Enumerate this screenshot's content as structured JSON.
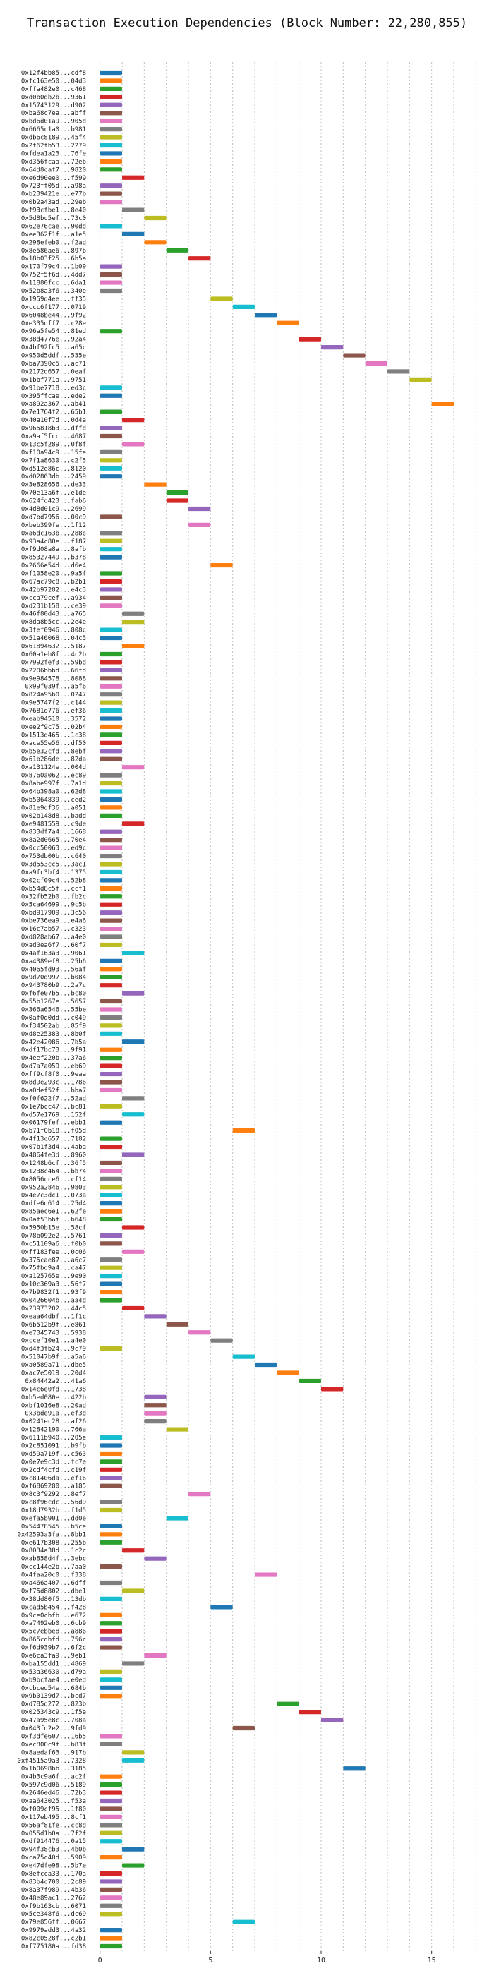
{
  "chart_data": {
    "type": "bar",
    "title": "Transaction Execution Dependencies (Block Number: 22,280,855)",
    "xlabel": "",
    "ylabel": "",
    "xlim": [
      -0.5,
      17.5
    ],
    "xticks": [
      0,
      5,
      10,
      15
    ],
    "grid": "vertical dotted",
    "bar_span": 1,
    "palette": [
      "#1f77b4",
      "#ff7f0e",
      "#2ca02c",
      "#d62728",
      "#9467bd",
      "#8c564b",
      "#e377c2",
      "#7f7f7f",
      "#bcbd22",
      "#17becf"
    ],
    "transactions": [
      {
        "tx": "0x12f4bb85...cdf8",
        "start": 0
      },
      {
        "tx": "0xfc163e50...04d3",
        "start": 0
      },
      {
        "tx": "0xffa482e0...c468",
        "start": 0
      },
      {
        "tx": "0xd0b0db2b...9361",
        "start": 0
      },
      {
        "tx": "0x15743129...d902",
        "start": 0
      },
      {
        "tx": "0xba68c7ea...abff",
        "start": 0
      },
      {
        "tx": "0xbd6d01a9...905d",
        "start": 0
      },
      {
        "tx": "0x6665c1a0...b981",
        "start": 0
      },
      {
        "tx": "0xdb6c8189...45f4",
        "start": 0
      },
      {
        "tx": "0x2f62fb53...2279",
        "start": 0
      },
      {
        "tx": "0xfdea1a23...76fe",
        "start": 0
      },
      {
        "tx": "0xd356fcaa...72eb",
        "start": 0
      },
      {
        "tx": "0x64d8caf7...9820",
        "start": 0
      },
      {
        "tx": "0xe6d90ee0...f599",
        "start": 1
      },
      {
        "tx": "0x723ff05d...a98a",
        "start": 0
      },
      {
        "tx": "0xb239421e...e77b",
        "start": 0
      },
      {
        "tx": "0x0b2a43ad...29eb",
        "start": 0
      },
      {
        "tx": "0xf93cfbe1...8e40",
        "start": 1
      },
      {
        "tx": "0x5d8bc5ef...73c0",
        "start": 2
      },
      {
        "tx": "0x62e76cae...90dd",
        "start": 0
      },
      {
        "tx": "0xee362f1f...a1e5",
        "start": 1
      },
      {
        "tx": "0x298efeb0...f2ad",
        "start": 2
      },
      {
        "tx": "0x8e586ae6...897b",
        "start": 3
      },
      {
        "tx": "0x18b03f25...6b5a",
        "start": 4
      },
      {
        "tx": "0x170f79c4...1b09",
        "start": 0
      },
      {
        "tx": "0x752f5f6d...4dd7",
        "start": 0
      },
      {
        "tx": "0x11880fcc...6da1",
        "start": 0
      },
      {
        "tx": "0x52b8a3f6...340e",
        "start": 0
      },
      {
        "tx": "0x1959d4ee...ff35",
        "start": 5
      },
      {
        "tx": "0xccc6f177...0719",
        "start": 6
      },
      {
        "tx": "0x6048be44...9f92",
        "start": 7
      },
      {
        "tx": "0xe335dff7...c28e",
        "start": 8
      },
      {
        "tx": "0x96a5fe54...81ed",
        "start": 0
      },
      {
        "tx": "0x38d4776e...92a4",
        "start": 9
      },
      {
        "tx": "0x4bf92fc5...a65c",
        "start": 10
      },
      {
        "tx": "0x950d5ddf...535e",
        "start": 11
      },
      {
        "tx": "0xba7390c5...ac71",
        "start": 12
      },
      {
        "tx": "0x2172d657...0eaf",
        "start": 13
      },
      {
        "tx": "0x1bbf771a...9751",
        "start": 14
      },
      {
        "tx": "0x91be7718...ed3c",
        "start": 0
      },
      {
        "tx": "0x395ffcae...ede2",
        "start": 0
      },
      {
        "tx": "0xa892a367...ab41",
        "start": 15
      },
      {
        "tx": "0x7e1764f2...65b1",
        "start": 0
      },
      {
        "tx": "0x40a10f7d...0d4a",
        "start": 1
      },
      {
        "tx": "0x965818b3...dffd",
        "start": 0
      },
      {
        "tx": "0xa9af5fcc...4687",
        "start": 0
      },
      {
        "tx": "0x13c5f289...0f8f",
        "start": 1
      },
      {
        "tx": "0xf10a94c9...15fe",
        "start": 0
      },
      {
        "tx": "0x7f1a8630...c2f5",
        "start": 0
      },
      {
        "tx": "0xd512e86c...8120",
        "start": 0
      },
      {
        "tx": "0xd02863db...2459",
        "start": 0
      },
      {
        "tx": "0x3e828656...de33",
        "start": 2
      },
      {
        "tx": "0x70e13a6f...e1de",
        "start": 3
      },
      {
        "tx": "0x624fd423...fab6",
        "start": 3
      },
      {
        "tx": "0x4d8d01c9...2699",
        "start": 4
      },
      {
        "tx": "0xd7bd7956...00c9",
        "start": 0
      },
      {
        "tx": "0xbeb399fe...1f12",
        "start": 4
      },
      {
        "tx": "0xa6dc163b...288e",
        "start": 0
      },
      {
        "tx": "0x93a4c80e...f187",
        "start": 0
      },
      {
        "tx": "0xf9d08a8a...8afb",
        "start": 0
      },
      {
        "tx": "0x85327449...b378",
        "start": 0
      },
      {
        "tx": "0x2666e54d...d6e4",
        "start": 5
      },
      {
        "tx": "0xf1058e20...9a5f",
        "start": 0
      },
      {
        "tx": "0x67ac79c8...b2b1",
        "start": 0
      },
      {
        "tx": "0x42b97282...e4c3",
        "start": 0
      },
      {
        "tx": "0xcca79cef...a934",
        "start": 0
      },
      {
        "tx": "0xd231b158...ce39",
        "start": 0
      },
      {
        "tx": "0x46f80d43...a765",
        "start": 1
      },
      {
        "tx": "0x8da8b5cc...2e4e",
        "start": 1
      },
      {
        "tx": "0x3fef0946...808c",
        "start": 0
      },
      {
        "tx": "0x51a46068...04c5",
        "start": 0
      },
      {
        "tx": "0x61894632...5187",
        "start": 1
      },
      {
        "tx": "0x60a1eb8f...4c2b",
        "start": 0
      },
      {
        "tx": "0x7992fef3...59bd",
        "start": 0
      },
      {
        "tx": "0x2206bbbd...66fd",
        "start": 0
      },
      {
        "tx": "0x9e984578...8088",
        "start": 0
      },
      {
        "tx": "0x99f039f...a5f6",
        "start": 0
      },
      {
        "tx": "0x824a95b0...0247",
        "start": 0
      },
      {
        "tx": "0x9e5747f2...c144",
        "start": 0
      },
      {
        "tx": "0x7681d776...ef36",
        "start": 0
      },
      {
        "tx": "0xeab94510...3572",
        "start": 0
      },
      {
        "tx": "0xee2f9c75...02b4",
        "start": 0
      },
      {
        "tx": "0x1513d465...1c38",
        "start": 0
      },
      {
        "tx": "0xace55e56...df50",
        "start": 0
      },
      {
        "tx": "0xb5e32cfd...8ebf",
        "start": 0
      },
      {
        "tx": "0x61b286de...82da",
        "start": 0
      },
      {
        "tx": "0xa131124e...004d",
        "start": 1
      },
      {
        "tx": "0x8760a062...ec89",
        "start": 0
      },
      {
        "tx": "0x8abe997f...7a1d",
        "start": 0
      },
      {
        "tx": "0x64b398a0...62d8",
        "start": 0
      },
      {
        "tx": "0xb5064839...ced2",
        "start": 0
      },
      {
        "tx": "0x81e9df36...a051",
        "start": 0
      },
      {
        "tx": "0x02b148d8...badd",
        "start": 0
      },
      {
        "tx": "0xe9481559...c9de",
        "start": 1
      },
      {
        "tx": "0x833df7a4...1668",
        "start": 0
      },
      {
        "tx": "0x8a2d0665...70e4",
        "start": 0
      },
      {
        "tx": "0x0cc50063...ed9c",
        "start": 0
      },
      {
        "tx": "0x753db00b...c640",
        "start": 0
      },
      {
        "tx": "0x3d553cc5...3ac1",
        "start": 0
      },
      {
        "tx": "0xa9fc3bf4...1375",
        "start": 0
      },
      {
        "tx": "0x02cf09c4...52b8",
        "start": 0
      },
      {
        "tx": "0xb54d8c5f...ccf1",
        "start": 0
      },
      {
        "tx": "0x32fb52b0...fb2c",
        "start": 0
      },
      {
        "tx": "0x5ca64699...9c5b",
        "start": 0
      },
      {
        "tx": "0xbd917909...3c56",
        "start": 0
      },
      {
        "tx": "0xbe736ea9...e4a6",
        "start": 0
      },
      {
        "tx": "0x16c7ab57...c323",
        "start": 0
      },
      {
        "tx": "0xd828ab67...a4e0",
        "start": 0
      },
      {
        "tx": "0xad0ea6f7...60f7",
        "start": 0
      },
      {
        "tx": "0x4af163a3...9061",
        "start": 1
      },
      {
        "tx": "0xa4389ef8...25b6",
        "start": 0
      },
      {
        "tx": "0x4065fd93...56af",
        "start": 0
      },
      {
        "tx": "0x9d70d997...b084",
        "start": 0
      },
      {
        "tx": "0x943780b9...2a7c",
        "start": 0
      },
      {
        "tx": "0xf6fe07b5...bc80",
        "start": 1
      },
      {
        "tx": "0x55b1267e...5657",
        "start": 0
      },
      {
        "tx": "0x366a6546...55be",
        "start": 0
      },
      {
        "tx": "0x0af0d0dd...c049",
        "start": 0
      },
      {
        "tx": "0xf34502ab...85f9",
        "start": 0
      },
      {
        "tx": "0xd8e25383...8b0f",
        "start": 0
      },
      {
        "tx": "0x42e42086...7b5a",
        "start": 1
      },
      {
        "tx": "0xdf17bc73...9f91",
        "start": 0
      },
      {
        "tx": "0x4eef220b...37a6",
        "start": 0
      },
      {
        "tx": "0xd7a7a059...eb69",
        "start": 0
      },
      {
        "tx": "0xff9cf8f0...9eaa",
        "start": 0
      },
      {
        "tx": "0x8d9e293c...1786",
        "start": 0
      },
      {
        "tx": "0xa0def52f...bba7",
        "start": 0
      },
      {
        "tx": "0xf0f622f7...52ad",
        "start": 1
      },
      {
        "tx": "0x1e7bcc47...bc81",
        "start": 0
      },
      {
        "tx": "0xd57e1769...152f",
        "start": 1
      },
      {
        "tx": "0x06179fef...ebb1",
        "start": 0
      },
      {
        "tx": "0xb71f0b18...f05d",
        "start": 6
      },
      {
        "tx": "0x4f13c657...7182",
        "start": 0
      },
      {
        "tx": "0x07b1f3d4...4aba",
        "start": 0
      },
      {
        "tx": "0x4864fe3d...8960",
        "start": 1
      },
      {
        "tx": "0x1248b6cf...36f5",
        "start": 0
      },
      {
        "tx": "0x1238c464...bb74",
        "start": 0
      },
      {
        "tx": "0x8056cce6...cf14",
        "start": 0
      },
      {
        "tx": "0x952a2846...9803",
        "start": 0
      },
      {
        "tx": "0x4e7c3dc1...073a",
        "start": 0
      },
      {
        "tx": "0xdfe6d614...25d4",
        "start": 0
      },
      {
        "tx": "0x85aec6e1...62fe",
        "start": 0
      },
      {
        "tx": "0x0af53bbf...b648",
        "start": 0
      },
      {
        "tx": "0x5950b15e...58cf",
        "start": 1
      },
      {
        "tx": "0x78b092e2...5761",
        "start": 0
      },
      {
        "tx": "0xc51109a6...f0b0",
        "start": 0
      },
      {
        "tx": "0xff183fee...0c06",
        "start": 1
      },
      {
        "tx": "0x375cae87...a6c7",
        "start": 0
      },
      {
        "tx": "0x75fbd9a4...ca47",
        "start": 0
      },
      {
        "tx": "0xa125765e...9e90",
        "start": 0
      },
      {
        "tx": "0x10c369a3...56f7",
        "start": 0
      },
      {
        "tx": "0x7b9832f1...93f9",
        "start": 0
      },
      {
        "tx": "0x0426604b...aa4d",
        "start": 0
      },
      {
        "tx": "0x23973202...44c5",
        "start": 1
      },
      {
        "tx": "0xeaa64dbf...1f1c",
        "start": 2
      },
      {
        "tx": "0x6b512b9f...e861",
        "start": 3
      },
      {
        "tx": "0xe7345743...5938",
        "start": 4
      },
      {
        "tx": "0xccef10e1...a4e0",
        "start": 5
      },
      {
        "tx": "0xd4f3fb24...9c79",
        "start": 0
      },
      {
        "tx": "0x51047b9f...a5a6",
        "start": 6
      },
      {
        "tx": "0xa0589a71...dbe5",
        "start": 7
      },
      {
        "tx": "0xac7e5019...20d4",
        "start": 8
      },
      {
        "tx": "0x84442a2...41a6",
        "start": 9
      },
      {
        "tx": "0x14c6e0fd...1738",
        "start": 10
      },
      {
        "tx": "0xb5ed080e...422b",
        "start": 2
      },
      {
        "tx": "0xbf1016e8...20ad",
        "start": 2
      },
      {
        "tx": "0x3bde91a...ef3d",
        "start": 2
      },
      {
        "tx": "0x0241ec28...af26",
        "start": 2
      },
      {
        "tx": "0x12842190...766a",
        "start": 3
      },
      {
        "tx": "0x6111b940...205e",
        "start": 0
      },
      {
        "tx": "0x2c851091...b9fb",
        "start": 0
      },
      {
        "tx": "0xd59a719f...c563",
        "start": 0
      },
      {
        "tx": "0x0e7e9c3d...fc7e",
        "start": 0
      },
      {
        "tx": "0x2cdf4cfd...c19f",
        "start": 0
      },
      {
        "tx": "0xc81406da...ef16",
        "start": 0
      },
      {
        "tx": "0xf6869280...a185",
        "start": 0
      },
      {
        "tx": "0x8c3f9292...8ef7",
        "start": 4
      },
      {
        "tx": "0xc8f96cdc...56d9",
        "start": 0
      },
      {
        "tx": "0x18d7932b...f1d5",
        "start": 0
      },
      {
        "tx": "0xefa5b901...dd0e",
        "start": 3
      },
      {
        "tx": "0x54478545...b5ce",
        "start": 0
      },
      {
        "tx": "0x42593a3fa...8bb1",
        "start": 0
      },
      {
        "tx": "0xe617b308...255b",
        "start": 0
      },
      {
        "tx": "0x8034a38d...1c2c",
        "start": 1
      },
      {
        "tx": "0xab858d4f...3ebc",
        "start": 2
      },
      {
        "tx": "0xcc144e2b...7aa0",
        "start": 0
      },
      {
        "tx": "0x4faa20c0...f338",
        "start": 7
      },
      {
        "tx": "0xa466a407...6dff",
        "start": 0
      },
      {
        "tx": "0xf75d8802...dbe1",
        "start": 1
      },
      {
        "tx": "0x38dd80f5...13db",
        "start": 0
      },
      {
        "tx": "0xcad5b454...f428",
        "start": 5
      },
      {
        "tx": "0x9ce0cbfb...e672",
        "start": 0
      },
      {
        "tx": "0xa7492eb0...6cb9",
        "start": 0
      },
      {
        "tx": "0x5c7ebbe8...a886",
        "start": 0
      },
      {
        "tx": "0x865cdbfd...756c",
        "start": 0
      },
      {
        "tx": "0xf6d939b7...6f2c",
        "start": 0
      },
      {
        "tx": "0xe6ca3fa9...9eb1",
        "start": 2
      },
      {
        "tx": "0xba155dd1...4869",
        "start": 1
      },
      {
        "tx": "0x53a36630...d79a",
        "start": 0
      },
      {
        "tx": "0xb9bcfae4...e0ed",
        "start": 0
      },
      {
        "tx": "0xcbced54e...684b",
        "start": 0
      },
      {
        "tx": "0x9b0139d7...bcd7",
        "start": 0
      },
      {
        "tx": "0xd785d272...823b",
        "start": 8
      },
      {
        "tx": "0x025343c9...1f5e",
        "start": 9
      },
      {
        "tx": "0x47a95e8c...708a",
        "start": 10
      },
      {
        "tx": "0x043fd2e2...9fd9",
        "start": 6
      },
      {
        "tx": "0xf3dfe607...16b5",
        "start": 0
      },
      {
        "tx": "0xec800c9f...b83f",
        "start": 0
      },
      {
        "tx": "0x8aedaf63...917b",
        "start": 1
      },
      {
        "tx": "0xf4515a9a3...7328",
        "start": 1
      },
      {
        "tx": "0x1b0698bb...3185",
        "start": 11
      },
      {
        "tx": "0x4b3c9a6f...ac2f",
        "start": 0
      },
      {
        "tx": "0x597c9d06...5189",
        "start": 0
      },
      {
        "tx": "0x2646ed46...72b3",
        "start": 0
      },
      {
        "tx": "0xaa643025...f53a",
        "start": 0
      },
      {
        "tx": "0xf009cf95...1f80",
        "start": 0
      },
      {
        "tx": "0x117eb495...8cf1",
        "start": 0
      },
      {
        "tx": "0x56af81fe...cc8d",
        "start": 0
      },
      {
        "tx": "0x055d1b0a...7f2f",
        "start": 0
      },
      {
        "tx": "0xdf914476...0a15",
        "start": 0
      },
      {
        "tx": "0x94f38cb3...4b0b",
        "start": 1
      },
      {
        "tx": "0xca75c40d...5909",
        "start": 0
      },
      {
        "tx": "0xe47dfe98...5b7e",
        "start": 1
      },
      {
        "tx": "0x8efcca33...170a",
        "start": 0
      },
      {
        "tx": "0x83b4c700...2c89",
        "start": 0
      },
      {
        "tx": "0x8a37f989...4b36",
        "start": 0
      },
      {
        "tx": "0x48e89ac1...2762",
        "start": 0
      },
      {
        "tx": "0xf9b163cb...6071",
        "start": 0
      },
      {
        "tx": "0x5ce348f6...dc69",
        "start": 0
      },
      {
        "tx": "0x79e856ff...0667",
        "start": 6
      },
      {
        "tx": "0x9979add3...4a32",
        "start": 0
      },
      {
        "tx": "0x82c0528f...c2b1",
        "start": 0
      },
      {
        "tx": "0xf775180a...fd38",
        "start": 0
      }
    ]
  }
}
